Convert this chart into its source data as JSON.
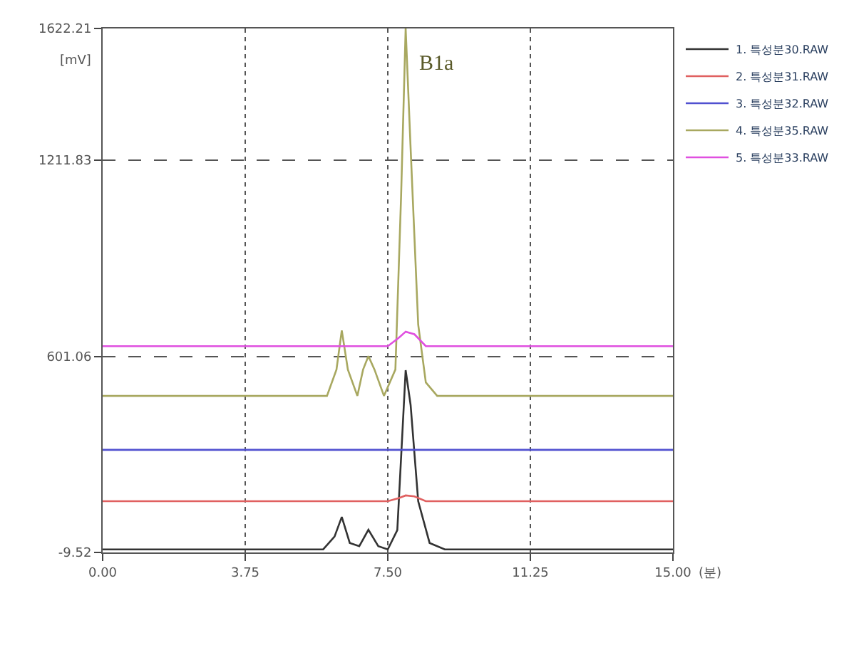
{
  "chart_data": {
    "type": "line",
    "xlabel": "(분)",
    "ylabel": "[mV]",
    "xlim": [
      0,
      15
    ],
    "xticks": [
      {
        "value": 0,
        "label": "0.00"
      },
      3.75,
      {
        "value": 7.5,
        "label": "7.50"
      },
      11.25,
      {
        "value": 15,
        "label": "15.00"
      }
    ],
    "ylim": [
      -9.52,
      1622.21
    ],
    "yticks": [
      -9.52,
      601.06,
      1211.83,
      1622.21
    ],
    "grid": true,
    "legend": "right",
    "marker": "none",
    "line_style": "solid",
    "annotations": [
      "B1a"
    ],
    "series": [
      {
        "name": "1. 특성분30.RAW",
        "color": "#333333",
        "x": [
          0,
          5.8,
          6.1,
          6.29,
          6.5,
          6.75,
          6.99,
          7.25,
          7.5,
          7.75,
          7.9,
          7.97,
          8.1,
          8.3,
          8.6,
          9.0,
          15
        ],
        "values": [
          0,
          0,
          40,
          101,
          20,
          10,
          61,
          10,
          0,
          60,
          400,
          558,
          450,
          150,
          20,
          0,
          0
        ]
      },
      {
        "name": "2. 특성분31.RAW",
        "color": "#e06060",
        "x": [
          0,
          7.5,
          7.8,
          7.97,
          8.2,
          8.5,
          15
        ],
        "values": [
          150,
          150,
          160,
          168,
          165,
          150,
          150
        ]
      },
      {
        "name": "3. 특성분32.RAW",
        "color": "#5050d0",
        "x": [
          0,
          15
        ],
        "values": [
          310,
          310
        ]
      },
      {
        "name": "4. 특성분35.RAW",
        "color": "#a8a860",
        "x": [
          0,
          5.9,
          6.15,
          6.29,
          6.45,
          6.7,
          6.85,
          6.99,
          7.15,
          7.4,
          7.7,
          7.85,
          7.97,
          8.1,
          8.3,
          8.5,
          8.8,
          15
        ],
        "values": [
          478,
          478,
          560,
          682,
          560,
          478,
          560,
          602,
          560,
          478,
          560,
          1100,
          1622,
          1250,
          700,
          520,
          478,
          478
        ]
      },
      {
        "name": "5. 특성분33.RAW",
        "color": "#e050e0",
        "x": [
          0,
          7.5,
          7.8,
          7.97,
          8.2,
          8.5,
          15
        ],
        "values": [
          633,
          633,
          660,
          678,
          670,
          633,
          633
        ]
      }
    ]
  }
}
